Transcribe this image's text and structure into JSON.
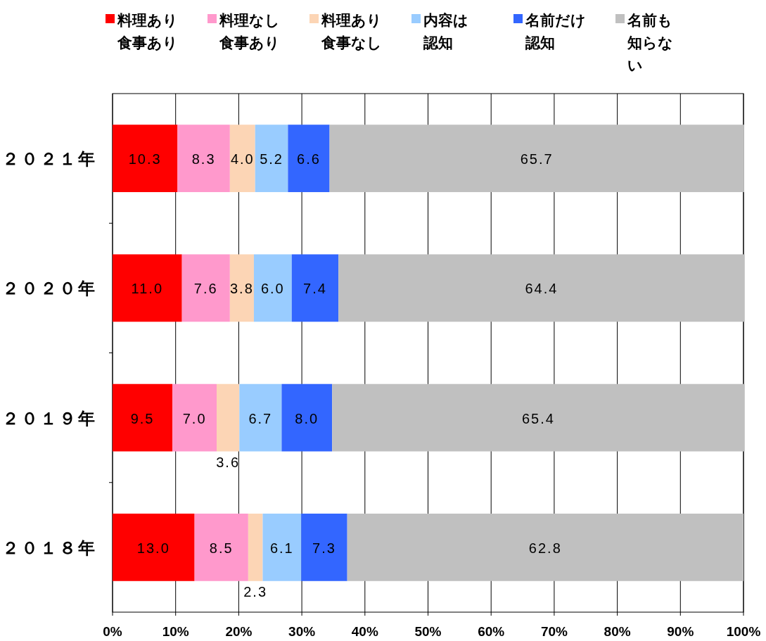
{
  "chart_data": {
    "type": "bar",
    "orientation": "horizontal",
    "stacked": true,
    "categories": [
      "２０２１年",
      "２０２０年",
      "２０１９年",
      "２０１８年"
    ],
    "series": [
      {
        "name": "料理あり食事あり",
        "color": "#ff0000",
        "values": [
          10.3,
          11.0,
          9.5,
          13.0
        ],
        "value_labels": [
          "10.3",
          "11.0",
          "9.5",
          "13.0"
        ]
      },
      {
        "name": "料理なし食事あり",
        "color": "#ff99cc",
        "values": [
          8.3,
          7.6,
          7.0,
          8.5
        ],
        "value_labels": [
          "8.3",
          "7.6",
          "7.0",
          "8.5"
        ]
      },
      {
        "name": "料理あり食事なし",
        "color": "#fcd5b5",
        "values": [
          4.0,
          3.8,
          3.6,
          2.3
        ],
        "value_labels": [
          "4.0",
          "3.8",
          "3.6",
          "2.3"
        ]
      },
      {
        "name": "内容は認知",
        "color": "#99ccff",
        "values": [
          5.2,
          6.0,
          6.7,
          6.1
        ],
        "value_labels": [
          "5.2",
          "6.0",
          "6.7",
          "6.1"
        ]
      },
      {
        "name": "名前だけ認知",
        "color": "#3366ff",
        "values": [
          6.6,
          7.4,
          8.0,
          7.3
        ],
        "value_labels": [
          "6.6",
          "7.4",
          "8.0",
          "7.3"
        ]
      },
      {
        "name": "名前も知らない",
        "color": "#c0c0c0",
        "values": [
          65.7,
          64.4,
          65.4,
          62.8
        ],
        "value_labels": [
          "65.7",
          "64.4",
          "65.4",
          "62.8"
        ]
      }
    ],
    "xlim": [
      0,
      100
    ],
    "xticks": [
      {
        "value": 0,
        "label": "0%"
      },
      {
        "value": 10,
        "label": "10%"
      },
      {
        "value": 20,
        "label": "20%"
      },
      {
        "value": 30,
        "label": "30%"
      },
      {
        "value": 40,
        "label": "40%"
      },
      {
        "value": 50,
        "label": "50%"
      },
      {
        "value": 60,
        "label": "60%"
      },
      {
        "value": 70,
        "label": "70%"
      },
      {
        "value": 80,
        "label": "80%"
      },
      {
        "value": 90,
        "label": "90%"
      },
      {
        "value": 100,
        "label": "100%"
      }
    ],
    "grid": "x",
    "legend": "top"
  }
}
